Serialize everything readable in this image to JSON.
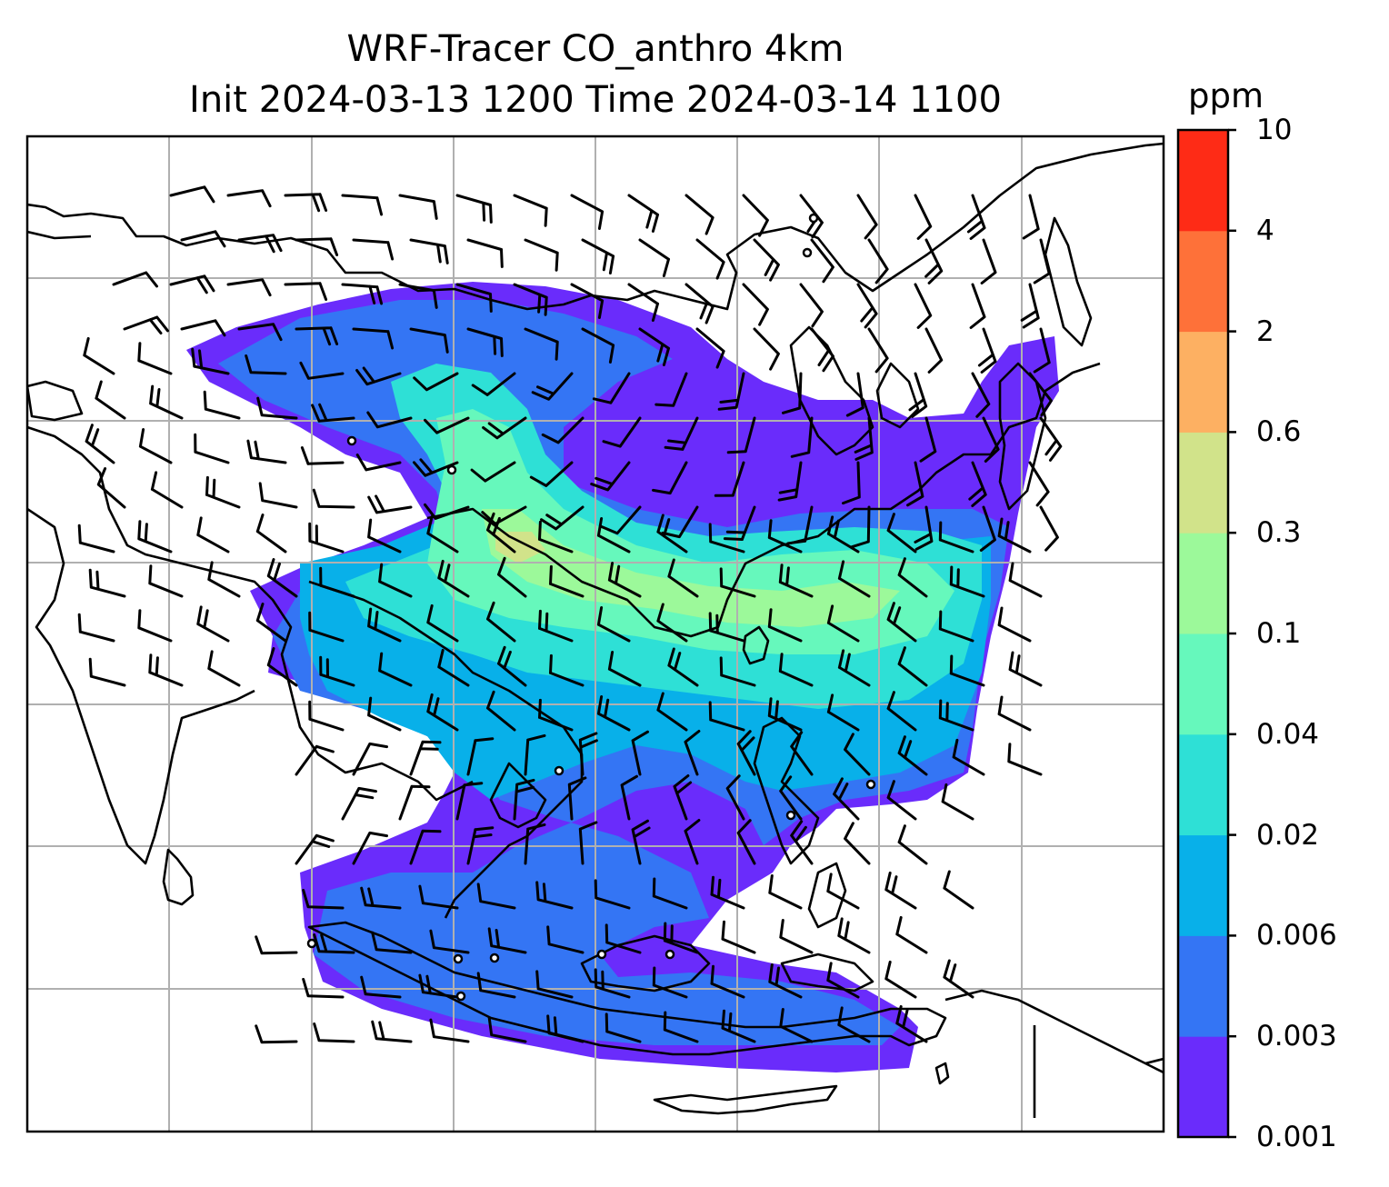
{
  "title": {
    "line1": "WRF-Tracer CO_anthro 4km",
    "line2": "Init 2024-03-13 1200 Time 2024-03-14 1100"
  },
  "colorbar": {
    "unit": "ppm",
    "levels": [
      "0.001",
      "0.003",
      "0.006",
      "0.02",
      "0.04",
      "0.1",
      "0.3",
      "0.6",
      "2",
      "4",
      "10"
    ],
    "colors": [
      "#6a2cfb",
      "#3475f4",
      "#08b0e9",
      "#2ee0d6",
      "#66f8bc",
      "#9cf99a",
      "#d1e38a",
      "#fdb062",
      "#fe7139",
      "#fe2b16"
    ]
  },
  "map": {
    "variable": "CO_anthro",
    "wind_symbol": "barbs",
    "gridlines": true,
    "coastlines": "black",
    "plume_color_bands": [
      "#6a2cfb",
      "#3475f4",
      "#08b0e9",
      "#2ee0d6",
      "#66f8bc",
      "#9cf99a",
      "#d1e38a"
    ]
  }
}
